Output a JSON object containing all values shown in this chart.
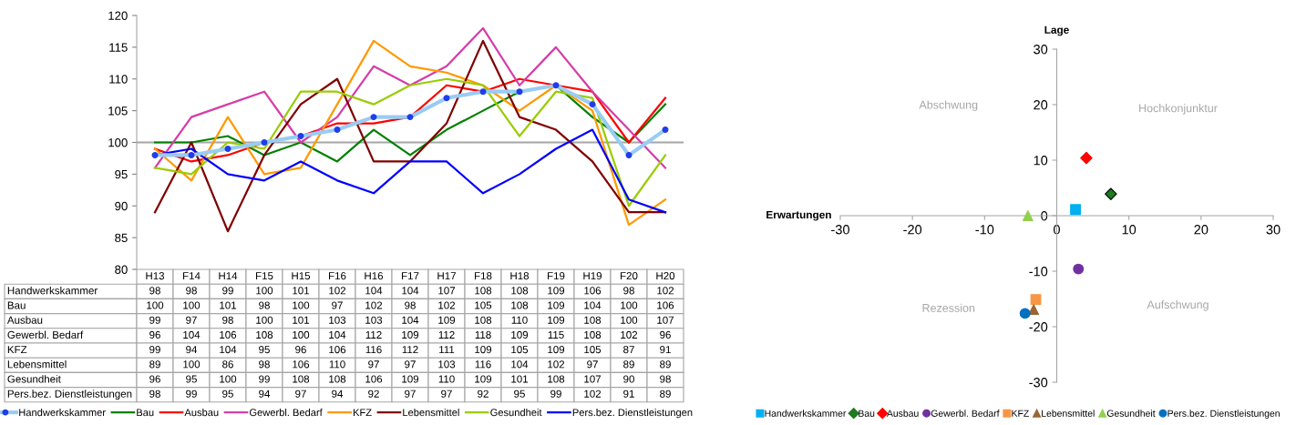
{
  "chart_data": [
    {
      "type": "line",
      "categories": [
        "H13",
        "F14",
        "H14",
        "F15",
        "H15",
        "F16",
        "H16",
        "F17",
        "H17",
        "F18",
        "H18",
        "F19",
        "H19",
        "F20",
        "H20"
      ],
      "ylim": [
        80,
        120
      ],
      "yticks": [
        80,
        85,
        90,
        95,
        100,
        105,
        110,
        115,
        120
      ],
      "grid": false,
      "legend": "bottom",
      "data_labels": true,
      "marker": "none",
      "line_style": "solid",
      "ref_lines": [
        {
          "axis": "y",
          "value": 100,
          "color": "#a6a6a6"
        }
      ],
      "series": [
        {
          "name": "Handwerkskammer",
          "color": "#99ccf5",
          "marker": "circle",
          "values": [
            98,
            98,
            99,
            100,
            101,
            102,
            104,
            104,
            107,
            108,
            108,
            109,
            106,
            98,
            102
          ]
        },
        {
          "name": "Bau",
          "color": "#008000",
          "values": [
            100,
            100,
            101,
            98,
            100,
            97,
            102,
            98,
            102,
            105,
            108,
            109,
            104,
            100,
            106
          ]
        },
        {
          "name": "Ausbau",
          "color": "#ff0000",
          "values": [
            99,
            97,
            98,
            100,
            101,
            103,
            103,
            104,
            109,
            108,
            110,
            109,
            108,
            100,
            107
          ]
        },
        {
          "name": "Gewerbl. Bedarf",
          "color": "#d63ca8",
          "values": [
            96,
            104,
            106,
            108,
            100,
            104,
            112,
            109,
            112,
            118,
            109,
            115,
            108,
            102,
            96
          ]
        },
        {
          "name": "KFZ",
          "color": "#ff9900",
          "values": [
            99,
            94,
            104,
            95,
            96,
            106,
            116,
            112,
            111,
            109,
            105,
            109,
            105,
            87,
            91
          ]
        },
        {
          "name": "Lebensmittel",
          "color": "#800000",
          "values": [
            89,
            100,
            86,
            98,
            106,
            110,
            97,
            97,
            103,
            116,
            104,
            102,
            97,
            89,
            89
          ]
        },
        {
          "name": "Gesundheit",
          "color": "#99cc00",
          "values": [
            96,
            95,
            100,
            99,
            108,
            108,
            106,
            109,
            110,
            109,
            101,
            108,
            107,
            90,
            98
          ]
        },
        {
          "name": "Pers.bez. Dienstleistungen",
          "color": "#0000ff",
          "values": [
            98,
            99,
            95,
            94,
            97,
            94,
            92,
            97,
            97,
            92,
            95,
            99,
            102,
            91,
            89
          ]
        }
      ]
    },
    {
      "type": "scatter",
      "xlabel": "Erwartungen",
      "ylabel": "Lage",
      "xlim": [
        -30,
        30
      ],
      "ylim": [
        -30,
        30
      ],
      "xticks": [
        -30,
        -20,
        -10,
        0,
        10,
        20,
        30
      ],
      "yticks": [
        -30,
        -20,
        -10,
        0,
        10,
        20,
        30
      ],
      "grid": false,
      "legend": "bottom",
      "annotations": [
        "Abschwung",
        "Hochkonjunktur",
        "Rezession",
        "Aufschwung"
      ],
      "series": [
        {
          "name": "Handwerkskammer",
          "color": "#00b0f0",
          "marker": "square",
          "x": [
            2.6
          ],
          "values": [
            1.1
          ]
        },
        {
          "name": "Bau",
          "color": "#1e7b1e",
          "marker": "diamond",
          "x": [
            7.5
          ],
          "values": [
            3.9
          ]
        },
        {
          "name": "Ausbau",
          "color": "#ff0000",
          "marker": "diamond",
          "x": [
            4.1
          ],
          "values": [
            10.4
          ]
        },
        {
          "name": "Gewerbl. Bedarf",
          "color": "#7030a0",
          "marker": "circle",
          "x": [
            3.0
          ],
          "values": [
            -9.6
          ]
        },
        {
          "name": "KFZ",
          "color": "#f79646",
          "marker": "square",
          "x": [
            -2.9
          ],
          "values": [
            -15.1
          ]
        },
        {
          "name": "Lebensmittel",
          "color": "#996633",
          "marker": "triangle",
          "x": [
            -3.2
          ],
          "values": [
            -16.9
          ]
        },
        {
          "name": "Gesundheit",
          "color": "#92d050",
          "marker": "triangle",
          "x": [
            -4.0
          ],
          "values": [
            0
          ]
        },
        {
          "name": "Pers.bez. Dienstleistungen",
          "color": "#0070c0",
          "marker": "circle",
          "x": [
            -4.4
          ],
          "values": [
            -17.6
          ]
        }
      ]
    }
  ]
}
